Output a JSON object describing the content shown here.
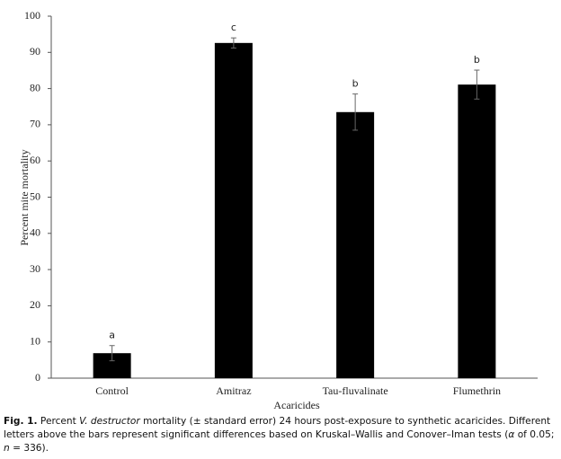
{
  "chart_data": {
    "type": "bar",
    "categories": [
      "Control",
      "Amitraz",
      "Tau-fluvalinate",
      "Flumethrin"
    ],
    "values": [
      6.9,
      92.6,
      73.5,
      81.1
    ],
    "errors": [
      2.1,
      1.4,
      5.0,
      4.0
    ],
    "significance_letters": [
      "a",
      "c",
      "b",
      "b"
    ],
    "color": "#000000",
    "xlabel": "Acaricides",
    "ylabel": "Percent mite mortality",
    "ylim": [
      0,
      100
    ],
    "yticks": [
      0,
      10,
      20,
      30,
      40,
      50,
      60,
      70,
      80,
      90,
      100
    ],
    "grid": false
  },
  "caption": {
    "label": "Fig. 1.",
    "segments": [
      " Percent ",
      "V. destructor",
      " mortality (± standard error) 24 hours post-exposure to synthetic acaricides. Different letters above the bars represent significant differences based on Kruskal–Wallis and Conover–Iman tests (",
      "α",
      " of 0.05; ",
      "n",
      " = 336)."
    ]
  }
}
